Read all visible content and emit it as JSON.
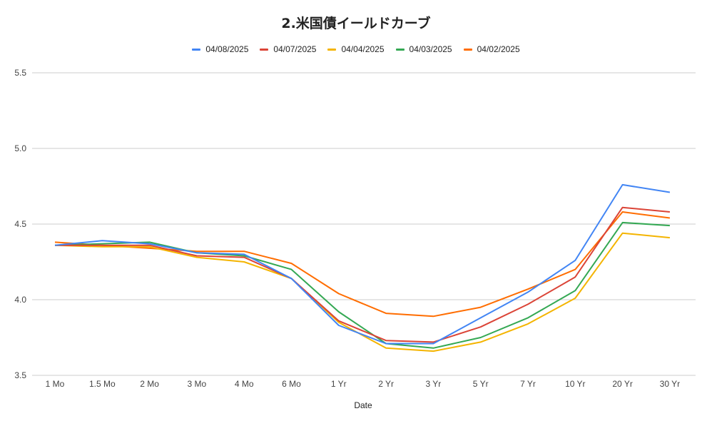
{
  "chart_data": {
    "type": "line",
    "title": "2.米国債イールドカーブ",
    "xlabel": "Date",
    "ylabel": "",
    "ylim": [
      3.5,
      5.5
    ],
    "yticks": [
      "3.5",
      "4.0",
      "4.5",
      "5.0",
      "5.5"
    ],
    "grid": true,
    "legend_position": "top",
    "categories": [
      "1 Mo",
      "1.5 Mo",
      "2 Mo",
      "3 Mo",
      "4 Mo",
      "6 Mo",
      "1 Yr",
      "2 Yr",
      "3 Yr",
      "5 Yr",
      "7 Yr",
      "10 Yr",
      "20 Yr",
      "30 Yr"
    ],
    "series": [
      {
        "name": "04/08/2025",
        "color": "#4285F4",
        "values": [
          4.36,
          4.39,
          4.37,
          4.31,
          4.3,
          4.14,
          3.83,
          3.71,
          3.71,
          3.88,
          4.05,
          4.26,
          4.76,
          4.71
        ]
      },
      {
        "name": "04/07/2025",
        "color": "#DB4437",
        "values": [
          4.36,
          4.36,
          4.36,
          4.29,
          4.28,
          4.14,
          3.86,
          3.73,
          3.72,
          3.82,
          3.97,
          4.15,
          4.61,
          4.58
        ]
      },
      {
        "name": "04/04/2025",
        "color": "#F4B400",
        "values": [
          4.36,
          4.35,
          4.35,
          4.28,
          4.25,
          4.14,
          3.85,
          3.68,
          3.66,
          3.72,
          3.84,
          4.01,
          4.44,
          4.41
        ]
      },
      {
        "name": "04/03/2025",
        "color": "#34A853",
        "values": [
          4.36,
          4.37,
          4.38,
          4.31,
          4.29,
          4.2,
          3.92,
          3.71,
          3.68,
          3.75,
          3.88,
          4.06,
          4.51,
          4.49
        ]
      },
      {
        "name": "04/02/2025",
        "color": "#FF6D01",
        "values": [
          4.38,
          4.36,
          4.34,
          4.32,
          4.32,
          4.24,
          4.04,
          3.91,
          3.89,
          3.95,
          4.07,
          4.2,
          4.58,
          4.54
        ]
      }
    ]
  }
}
